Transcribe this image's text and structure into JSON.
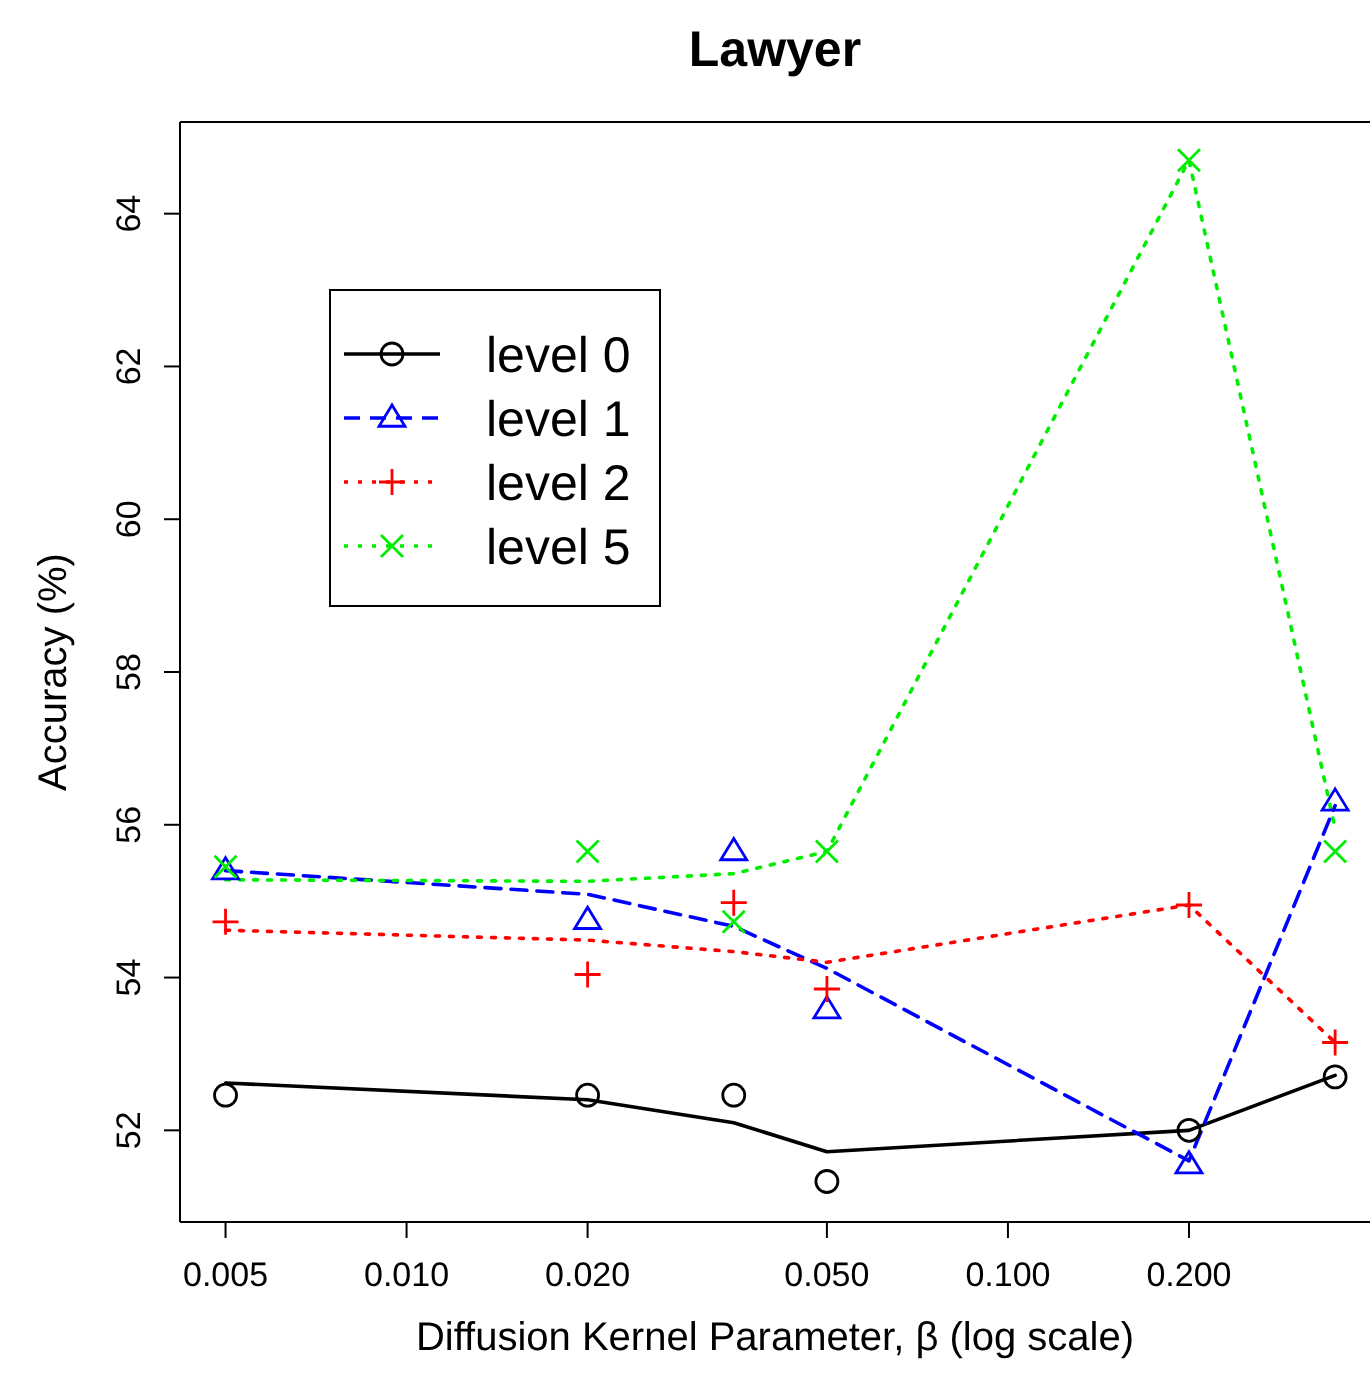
{
  "chart_data": {
    "type": "scatter",
    "title": "Lawyer",
    "xlabel": "Diffusion Kernel Parameter, β (log scale)",
    "ylabel": "Accuracy (%)",
    "log": "x",
    "xlim": [
      0.0042,
      0.4
    ],
    "ylim": [
      50.8,
      65.2
    ],
    "xticks": [
      {
        "value": 0.005,
        "label": "0.005"
      },
      {
        "value": 0.01,
        "label": "0.010"
      },
      {
        "value": 0.02,
        "label": "0.020"
      },
      {
        "value": 0.05,
        "label": "0.050"
      },
      {
        "value": 0.1,
        "label": "0.100"
      },
      {
        "value": 0.2,
        "label": "0.200"
      }
    ],
    "yticks": [
      52,
      54,
      56,
      58,
      60,
      62,
      64
    ],
    "grid": false,
    "legend": "top left",
    "x": [
      0.005,
      0.02,
      0.035,
      0.05,
      0.2,
      0.35
    ],
    "series": [
      {
        "name": "level 0",
        "color": "#000000",
        "marker": "circle",
        "values": [
          52.46,
          52.46,
          52.46,
          51.33,
          52.0,
          52.7
        ]
      },
      {
        "name": "level 1",
        "color": "#0000ff",
        "marker": "triangle",
        "values": [
          55.4,
          54.75,
          55.65,
          53.58,
          51.55,
          56.3
        ]
      },
      {
        "name": "level 2",
        "color": "#ff0000",
        "marker": "cross",
        "values": [
          54.73,
          54.04,
          54.98,
          53.85,
          54.95,
          53.15
        ]
      },
      {
        "name": "level 5",
        "color": "#00ee00",
        "marker": "x",
        "values": [
          55.45,
          55.65,
          54.73,
          55.65,
          64.7,
          55.65
        ]
      },
      {
        "type": "line",
        "color": "#000000",
        "line_style": "solid",
        "values": [
          52.62,
          52.4,
          52.1,
          51.72,
          52.0,
          52.72
        ]
      },
      {
        "type": "line",
        "color": "#0000ff",
        "line_style": "dashed",
        "values": [
          55.4,
          55.09,
          54.67,
          54.12,
          51.6,
          56.25
        ]
      },
      {
        "type": "line",
        "color": "#ff0000",
        "line_style": "dotted",
        "values": [
          54.62,
          54.49,
          54.34,
          54.2,
          54.95,
          53.15
        ]
      },
      {
        "type": "line",
        "color": "#00ee00",
        "line_style": "dotted",
        "values": [
          55.28,
          55.26,
          55.36,
          55.65,
          64.7,
          55.95
        ]
      }
    ]
  }
}
